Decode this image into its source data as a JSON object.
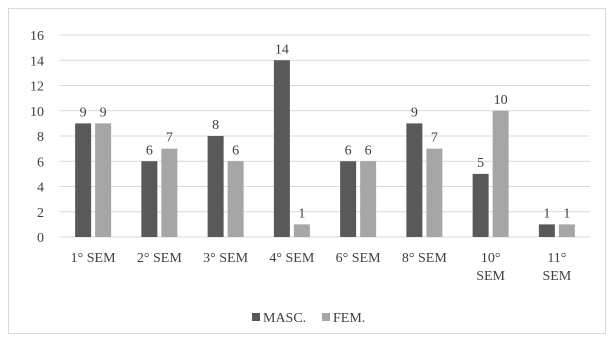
{
  "chart_data": {
    "type": "bar",
    "categories": [
      [
        "1° SEM"
      ],
      [
        "2° SEM"
      ],
      [
        "3° SEM"
      ],
      [
        "4° SEM"
      ],
      [
        "6° SEM"
      ],
      [
        "8° SEM"
      ],
      [
        "10°",
        "SEM"
      ],
      [
        "11°",
        "SEM"
      ]
    ],
    "series": [
      {
        "name": "MASC.",
        "values": [
          9,
          6,
          8,
          14,
          6,
          9,
          5,
          1
        ],
        "color": "#595959"
      },
      {
        "name": "FEM.",
        "values": [
          9,
          7,
          6,
          1,
          6,
          7,
          10,
          1
        ],
        "color": "#a6a6a6"
      }
    ],
    "ylim": [
      0,
      16
    ],
    "yticks": [
      "0",
      "2",
      "4",
      "6",
      "8",
      "10",
      "12",
      "14",
      "16"
    ],
    "grid": true,
    "legend_position": "bottom",
    "gridline_color": "#d9d9d9"
  }
}
